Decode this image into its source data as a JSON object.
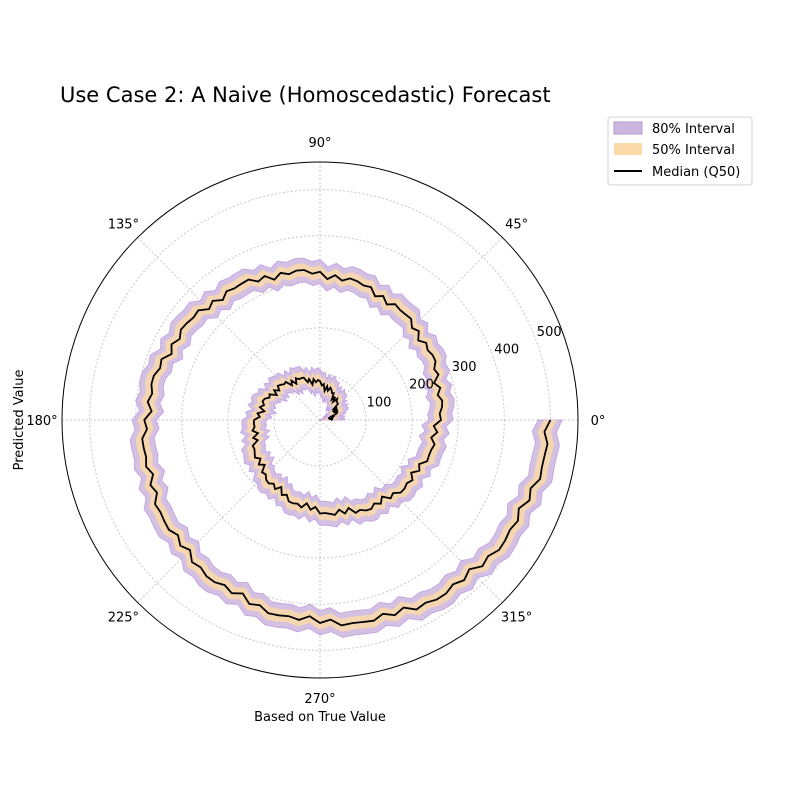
{
  "chart_data": {
    "type": "polar-line",
    "title": "Use Case 2: A Naive (Homoscedastic) Forecast",
    "xlabel": "Based on True Value",
    "ylabel": "Predicted Value",
    "angle_unit": "degrees",
    "angle_ticks": [
      "0°",
      "45°",
      "90°",
      "135°",
      "180°",
      "225°",
      "270°",
      "315°"
    ],
    "radial_ticks": [
      "100",
      "200",
      "300",
      "400",
      "500"
    ],
    "radial_tick_values": [
      100,
      200,
      300,
      400,
      500
    ],
    "rlim": [
      0,
      560
    ],
    "grid": true,
    "legend_position": "upper-right-outside",
    "legend": [
      {
        "label": "80% Interval",
        "color": "#cdb6dd"
      },
      {
        "label": "50% Interval",
        "color": "#fbd9a8"
      },
      {
        "label": "Median (Q50)",
        "color": "#000000"
      }
    ],
    "series": [
      {
        "name": "Median (Q50)",
        "theta_deg": [
          0,
          30,
          60,
          90,
          120,
          150,
          180,
          210,
          240,
          270,
          300,
          330,
          360,
          390,
          420,
          450,
          480,
          510,
          540,
          570,
          600,
          630,
          660,
          690,
          720
        ],
        "r": [
          20,
          40,
          60,
          80,
          100,
          118,
          138,
          158,
          178,
          198,
          218,
          238,
          258,
          278,
          298,
          318,
          338,
          358,
          378,
          398,
          418,
          438,
          458,
          478,
          498
        ]
      }
    ],
    "intervals": [
      {
        "name": "80% Interval",
        "half_width": 26
      },
      {
        "name": "50% Interval",
        "half_width": 14
      }
    ]
  }
}
